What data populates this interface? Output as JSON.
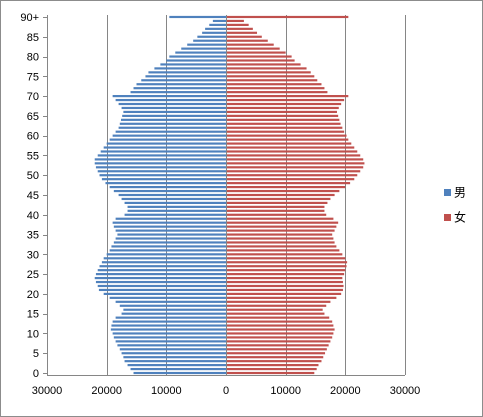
{
  "chart_data": {
    "type": "bar",
    "orientation": "horizontal",
    "layout": "population-pyramid",
    "grid": true,
    "legend_position": "right",
    "ages": [
      0,
      1,
      2,
      3,
      4,
      5,
      6,
      7,
      8,
      9,
      10,
      11,
      12,
      13,
      14,
      15,
      16,
      17,
      18,
      19,
      20,
      21,
      22,
      23,
      24,
      25,
      26,
      27,
      28,
      29,
      30,
      31,
      32,
      33,
      34,
      35,
      36,
      37,
      38,
      39,
      40,
      41,
      42,
      43,
      44,
      45,
      46,
      47,
      48,
      49,
      50,
      51,
      52,
      53,
      54,
      55,
      56,
      57,
      58,
      59,
      60,
      61,
      62,
      63,
      64,
      65,
      66,
      67,
      68,
      69,
      70,
      71,
      72,
      73,
      74,
      75,
      76,
      77,
      78,
      79,
      80,
      81,
      82,
      83,
      84,
      85,
      86,
      87,
      88,
      89,
      90
    ],
    "y_tick_labels": [
      "0",
      "5",
      "10",
      "15",
      "20",
      "25",
      "30",
      "35",
      "40",
      "45",
      "50",
      "55",
      "60",
      "65",
      "70",
      "75",
      "80",
      "85",
      "90+"
    ],
    "y_tick_ages": [
      0,
      5,
      10,
      15,
      20,
      25,
      30,
      35,
      40,
      45,
      50,
      55,
      60,
      65,
      70,
      75,
      80,
      85,
      90
    ],
    "x_ticks": [
      -30000,
      -20000,
      -10000,
      0,
      10000,
      20000,
      30000
    ],
    "x_tick_labels": [
      "30000",
      "20000",
      "10000",
      "0",
      "10000",
      "20000",
      "30000"
    ],
    "xlim": [
      -30000,
      30000
    ],
    "series": [
      {
        "name": "男",
        "color": "#4f81bd",
        "values": [
          15500,
          16000,
          16500,
          17000,
          17200,
          17500,
          17800,
          18200,
          18500,
          18800,
          19000,
          19300,
          19200,
          19000,
          18500,
          17500,
          17200,
          17800,
          18500,
          19500,
          20500,
          21300,
          21500,
          21800,
          22000,
          21800,
          21500,
          21200,
          20800,
          20500,
          20000,
          19500,
          19200,
          18800,
          18500,
          18200,
          18500,
          18800,
          19000,
          18500,
          17000,
          16500,
          16500,
          17000,
          17500,
          18000,
          18800,
          19500,
          20200,
          20800,
          21200,
          21500,
          21800,
          22000,
          22000,
          21500,
          21000,
          20500,
          20000,
          19500,
          19000,
          18500,
          18000,
          17800,
          17600,
          17400,
          17200,
          17500,
          18000,
          18500,
          19000,
          16000,
          15500,
          15000,
          14200,
          13500,
          13000,
          12000,
          11000,
          10000,
          9500,
          8500,
          7500,
          6500,
          5500,
          4800,
          4000,
          3500,
          2800,
          2200,
          9500
        ],
        "values_note": "male population per age, plotted to the left of zero"
      },
      {
        "name": "女",
        "color": "#c0504d",
        "values": [
          14800,
          15200,
          15500,
          16000,
          16300,
          16600,
          16900,
          17200,
          17500,
          17800,
          18000,
          18200,
          18000,
          17800,
          17300,
          16500,
          16200,
          16800,
          17500,
          18500,
          19300,
          19600,
          19700,
          19600,
          19500,
          19800,
          20000,
          20200,
          20300,
          20000,
          19500,
          19000,
          18500,
          18200,
          18000,
          17800,
          18200,
          18500,
          18800,
          18000,
          16800,
          16500,
          16500,
          17000,
          17500,
          18200,
          19000,
          20000,
          20800,
          21500,
          22000,
          22500,
          23000,
          23200,
          23000,
          22500,
          22000,
          21500,
          21000,
          20500,
          20200,
          19800,
          19500,
          19200,
          19000,
          18800,
          18600,
          18900,
          19300,
          19800,
          20500,
          17000,
          16500,
          16000,
          15300,
          14800,
          14200,
          13500,
          12500,
          11500,
          11000,
          10000,
          9000,
          8000,
          7000,
          6000,
          5200,
          4500,
          3800,
          3000,
          20500
        ],
        "values_note": "female population per age, plotted to the right of zero"
      }
    ]
  }
}
